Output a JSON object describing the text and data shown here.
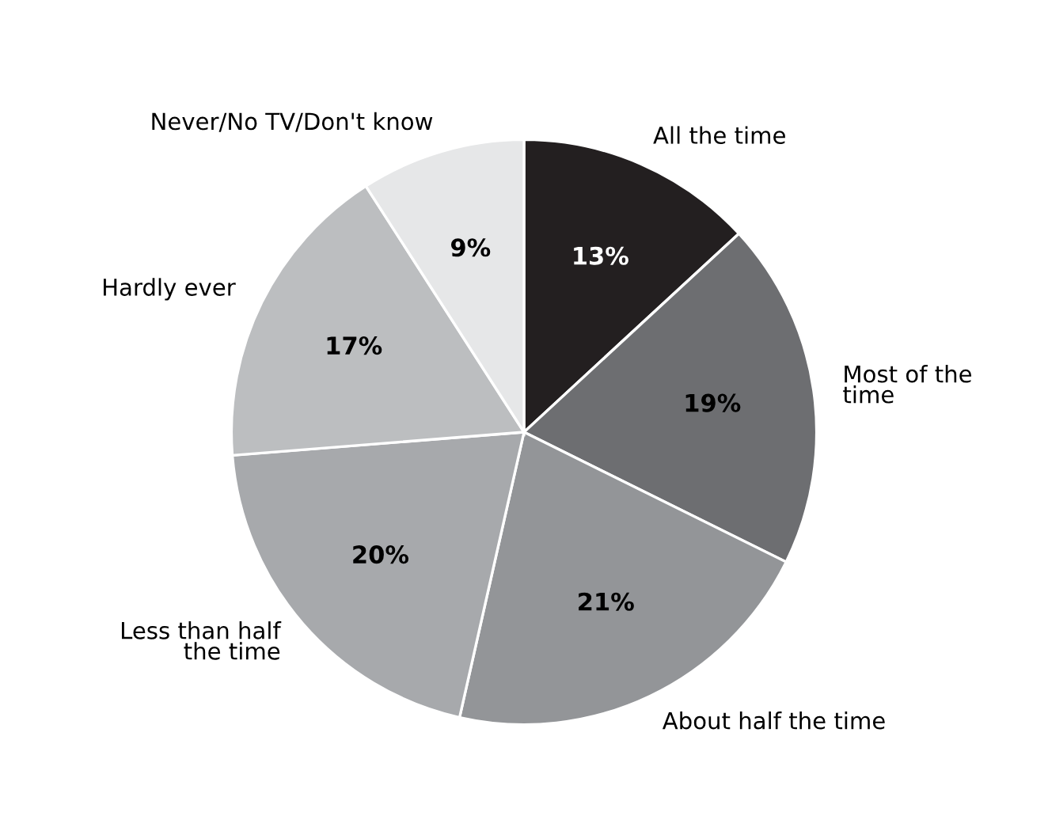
{
  "chart_data": {
    "type": "pie",
    "categories": [
      "All the time",
      "Most of the\ntime",
      "About half the time",
      "Less than half\nthe time",
      "Hardly ever",
      "Never/No TV/Don't know"
    ],
    "values": [
      13,
      19,
      21,
      20,
      17,
      9
    ],
    "colors": [
      "#231f20",
      "#6d6e71",
      "#939598",
      "#a7a9ac",
      "#bcbec0",
      "#e6e7e8"
    ],
    "value_labels": [
      "13%",
      "19%",
      "21%",
      "20%",
      "17%",
      "9%"
    ],
    "legend": false
  }
}
